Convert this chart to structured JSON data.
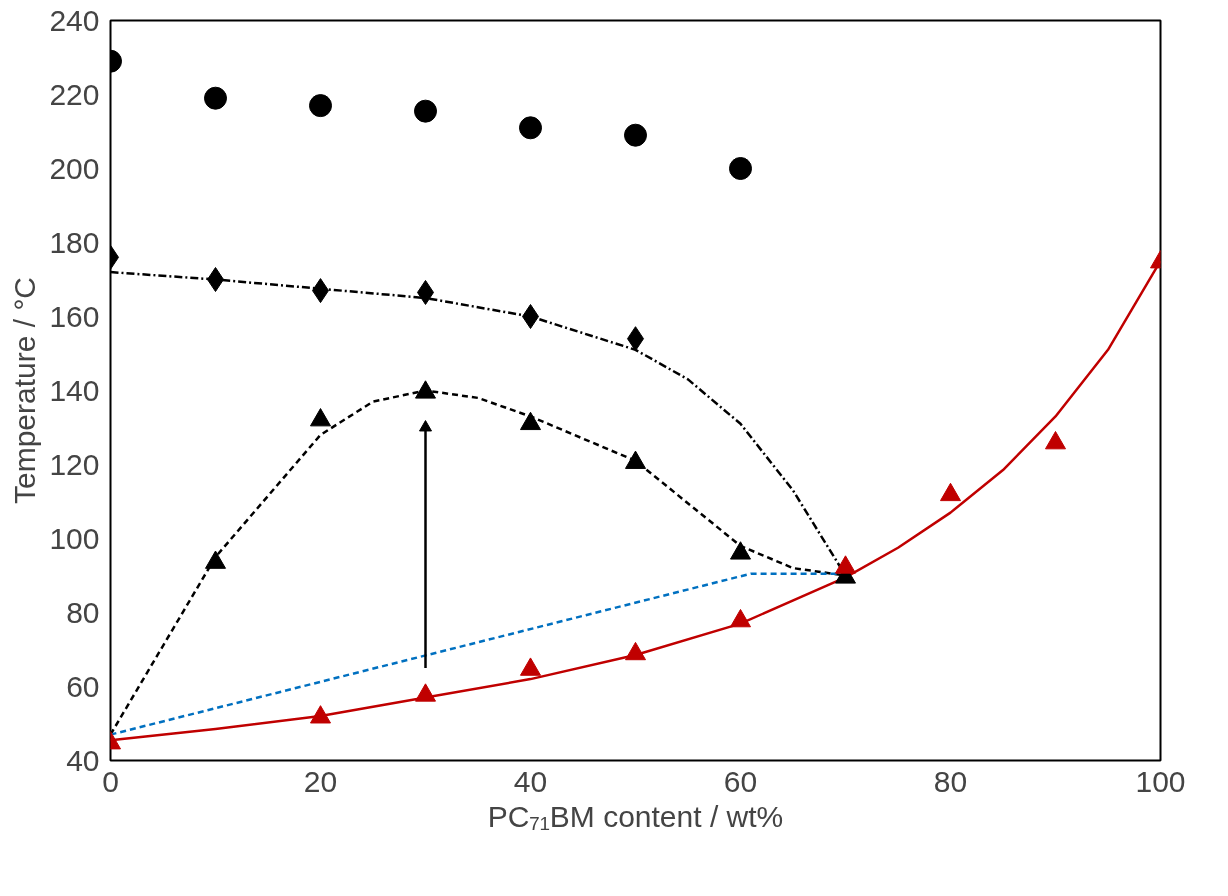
{
  "chart_data": {
    "type": "scatter",
    "xlabel": "PC₇₁BM content / wt%",
    "ylabel": "Temperature / °C",
    "xlim": [
      0,
      100
    ],
    "ylim": [
      40,
      240
    ],
    "xticks": [
      0,
      20,
      40,
      60,
      80,
      100
    ],
    "yticks": [
      40,
      60,
      80,
      100,
      120,
      140,
      160,
      180,
      200,
      220,
      240
    ],
    "grid": false,
    "series": [
      {
        "marker": "circle",
        "color": "#000000",
        "x": [
          0,
          10,
          20,
          30,
          40,
          50,
          60
        ],
        "values": [
          229,
          219,
          217,
          215.5,
          211,
          209,
          200
        ]
      },
      {
        "marker": "diamond",
        "color": "#000000",
        "x": [
          0,
          10,
          20,
          30,
          40,
          50
        ],
        "values": [
          176,
          170,
          167,
          166.5,
          160,
          154
        ]
      },
      {
        "type": "line",
        "line_style": "dashdot",
        "color": "#000000",
        "x": [
          0,
          10,
          20,
          30,
          40,
          50,
          55,
          60,
          65,
          70
        ],
        "values": [
          172,
          170,
          167.5,
          165,
          160,
          151,
          143,
          131,
          113,
          90
        ]
      },
      {
        "type": "line",
        "line_style": "dashed",
        "color": "#000000",
        "x": [
          0,
          10,
          20,
          25,
          30,
          35,
          40,
          50,
          60,
          65,
          70
        ],
        "values": [
          47,
          95,
          128,
          137,
          140,
          138,
          133,
          121,
          98,
          92,
          90
        ]
      },
      {
        "marker": "triangle",
        "color": "#000000",
        "x": [
          10,
          20,
          30,
          40,
          50,
          60,
          70
        ],
        "values": [
          93.5,
          132,
          139.5,
          131,
          120.5,
          96,
          89.5
        ]
      },
      {
        "type": "line",
        "line_style": "dashed",
        "color": "#0070c0",
        "x": [
          0,
          61,
          70
        ],
        "values": [
          47,
          90.5,
          90.5
        ]
      },
      {
        "type": "line",
        "line_style": "solid",
        "color": "#c00000",
        "x": [
          0,
          10,
          20,
          30,
          40,
          50,
          60,
          70,
          75,
          80,
          85,
          90,
          95,
          100
        ],
        "values": [
          45.5,
          48.5,
          52,
          57,
          62,
          68.5,
          77,
          89.5,
          97.5,
          107,
          118.5,
          133,
          151,
          175
        ]
      },
      {
        "marker": "triangle",
        "color": "#c00000",
        "x": [
          0,
          20,
          30,
          40,
          50,
          60,
          70,
          80,
          90,
          100
        ],
        "values": [
          44.7,
          51.7,
          57.6,
          64.6,
          68.8,
          77.7,
          92.2,
          111.8,
          125.8,
          174.7
        ]
      },
      {
        "type": "line",
        "marker": "triangle",
        "line_style": "solid",
        "color": "#000000",
        "x": [
          30,
          30
        ],
        "values": [
          65,
          130
        ]
      }
    ]
  }
}
